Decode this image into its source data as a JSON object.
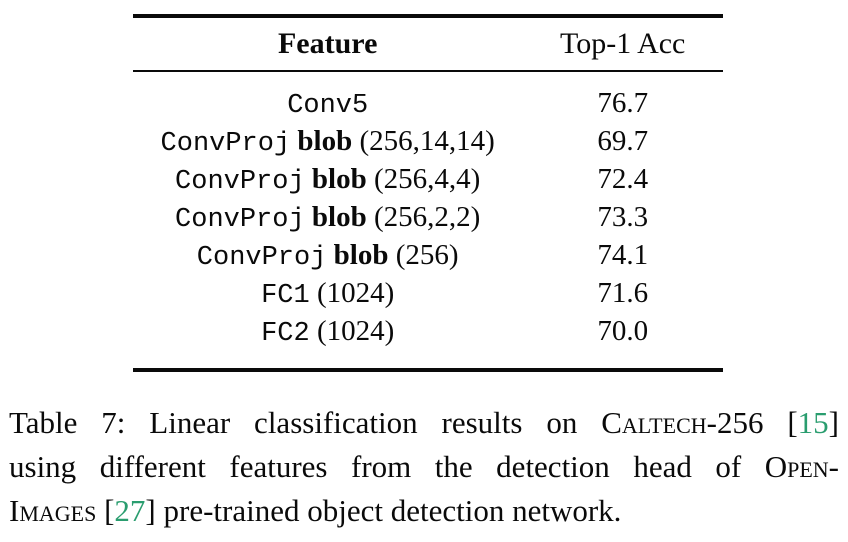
{
  "colors": {
    "text": "#0a0a0a",
    "background": "#ffffff",
    "citation_green": "#2a9d6f"
  },
  "table": {
    "header": {
      "feature": "Feature",
      "acc": "Top-1 Acc"
    },
    "rows": [
      {
        "mono": "Conv5",
        "bold": "",
        "plain": "",
        "acc": "76.7"
      },
      {
        "mono": "ConvProj",
        "bold": "blob",
        "plain": "(256,14,14)",
        "acc": "69.7"
      },
      {
        "mono": "ConvProj",
        "bold": "blob",
        "plain": "(256,4,4)",
        "acc": "72.4"
      },
      {
        "mono": "ConvProj",
        "bold": "blob",
        "plain": "(256,2,2)",
        "acc": "73.3"
      },
      {
        "mono": "ConvProj",
        "bold": "blob",
        "plain": "(256)",
        "acc": "74.1"
      },
      {
        "mono": "FC1",
        "bold": "",
        "plain": "(1024)",
        "acc": "71.6"
      },
      {
        "mono": "FC2",
        "bold": "",
        "plain": "(1024)",
        "acc": "70.0"
      }
    ]
  },
  "chart_data": {
    "type": "table",
    "title": "Table 7",
    "columns": [
      "Feature",
      "Top-1 Acc"
    ],
    "rows": [
      [
        "Conv5",
        76.7
      ],
      [
        "ConvProj blob (256,14,14)",
        69.7
      ],
      [
        "ConvProj blob (256,4,4)",
        72.4
      ],
      [
        "ConvProj blob (256,2,2)",
        73.3
      ],
      [
        "ConvProj blob (256)",
        74.1
      ],
      [
        "FC1 (1024)",
        71.6
      ],
      [
        "FC2 (1024)",
        70.0
      ]
    ]
  },
  "caption": {
    "lines": [
      {
        "justify_last": true,
        "segments": [
          {
            "text": "Table 7: Linear classification results on ",
            "style": "normal"
          },
          {
            "text": "Caltech",
            "style": "smallcaps"
          },
          {
            "text": "-256 [",
            "style": "normal"
          },
          {
            "text": "15",
            "style": "cite"
          },
          {
            "text": "]",
            "style": "normal"
          }
        ]
      },
      {
        "justify_last": true,
        "segments": [
          {
            "text": "using different features from the detection head of ",
            "style": "normal"
          },
          {
            "text": "Open-",
            "style": "smallcaps"
          }
        ]
      },
      {
        "justify_last": false,
        "segments": [
          {
            "text": "Images",
            "style": "smallcaps"
          },
          {
            "text": " [",
            "style": "normal"
          },
          {
            "text": "27",
            "style": "cite"
          },
          {
            "text": "] pre-trained object detection network.",
            "style": "normal"
          }
        ]
      }
    ]
  }
}
